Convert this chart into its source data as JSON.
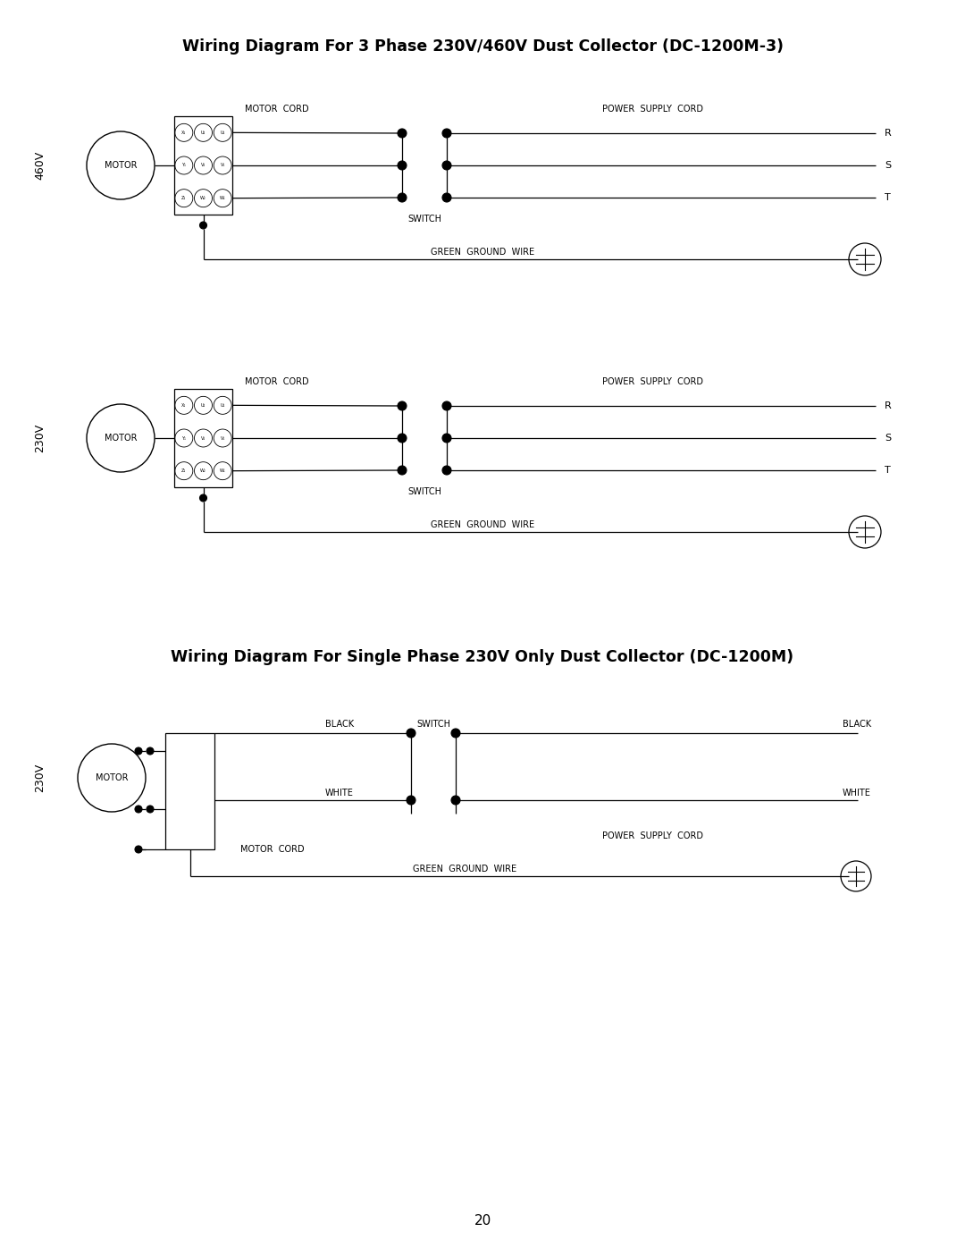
{
  "title1": "Wiring Diagram For 3 Phase 230V/460V Dust Collector (DC-1200M-3)",
  "title2": "Wiring Diagram For Single Phase 230V Only Dust Collector (DC-1200M)",
  "page_number": "20",
  "bg_color": "#ffffff",
  "line_color": "#000000",
  "text_color": "#000000",
  "title1_fontsize": 12.5,
  "title2_fontsize": 12.5,
  "label_fontsize": 7.0
}
